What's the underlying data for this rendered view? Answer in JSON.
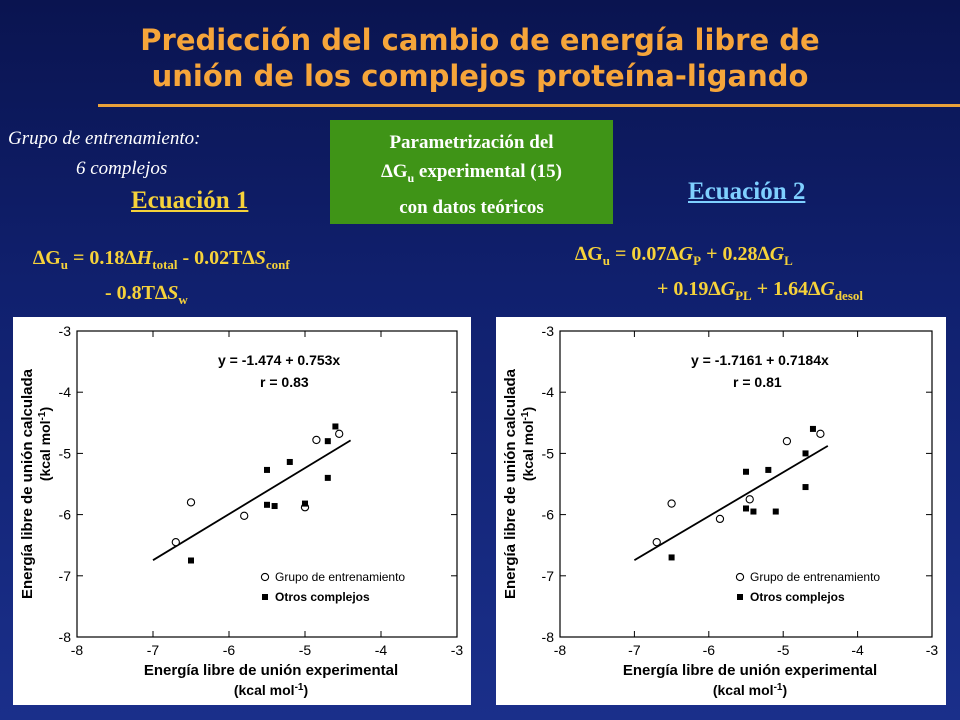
{
  "slide": {
    "title_line1": "Predicción del cambio de energía libre de",
    "title_line2": "unión de los complejos proteína-ligando",
    "training_line1": "Grupo de entrenamiento:",
    "training_line2": "6 complejos",
    "box_line1": "Parametrización del",
    "box_delta": "∆G",
    "box_sub": "u",
    "box_line2_rest": " experimental (15)",
    "box_line3": "con datos teóricos",
    "eq1_title": "Ecuación 1",
    "eq2_title": "Ecuación 2",
    "colors": {
      "title": "#f6a53a",
      "eq_text": "#f6d23a",
      "eq2_title": "#7fd0ff",
      "box": "#3f9417"
    }
  },
  "formula1": {
    "p1": "∆G",
    "p1_sub": "u",
    "p2": " = 0.18∆",
    "p3": "H",
    "p3_sub": "total",
    "p4": " - 0.02T∆",
    "p5": "S",
    "p5_sub": "conf",
    "p6": "- 0.8T∆",
    "p7": "S",
    "p7_sub": "w"
  },
  "formula2": {
    "p1": "∆G",
    "p1_sub": "u",
    "p2": " = 0.07∆",
    "p3": "G",
    "p3_sub": "P",
    "p4": " + 0.28∆",
    "p5": "G",
    "p5_sub": "L",
    "p6": "+ 0.19∆",
    "p7": "G",
    "p7_sub": "PL",
    "p8": " + 1.64∆",
    "p9": "G",
    "p9_sub": "desol"
  },
  "chart_data": [
    {
      "type": "scatter",
      "xlabel": "Energía libre de unión experimental",
      "xlabel_units": "(kcal mol",
      "xlabel_sup": "-1",
      "xlabel_close": ")",
      "ylabel": "Energía libre de unión calculada",
      "ylabel_units": "(kcal mol",
      "ylabel_sup": "-1",
      "ylabel_close": ")",
      "xlim": [
        -8,
        -3
      ],
      "ylim": [
        -8,
        -3
      ],
      "xticks": [
        -8,
        -7,
        -6,
        -5,
        -4,
        -3
      ],
      "yticks": [
        -3,
        -4,
        -5,
        -6,
        -7,
        -8
      ],
      "eq_text": "y = -1.474 + 0.753x",
      "r_text": "r = 0.83",
      "legend_position": "bottom-right",
      "fit": {
        "intercept": -1.474,
        "slope": 0.753,
        "x_range": [
          -7.0,
          -4.4
        ]
      },
      "series": [
        {
          "name": "Grupo de entrenamiento",
          "marker": "open-circle",
          "x": [
            -6.7,
            -6.5,
            -5.8,
            -5.0,
            -4.85,
            -4.55
          ],
          "y": [
            -6.45,
            -5.8,
            -6.02,
            -5.88,
            -4.78,
            -4.68
          ]
        },
        {
          "name": "Otros complejos",
          "marker": "filled-square",
          "x": [
            -6.5,
            -5.5,
            -5.5,
            -5.4,
            -5.2,
            -5.0,
            -4.7,
            -4.7,
            -4.6
          ],
          "y": [
            -6.75,
            -5.27,
            -5.84,
            -5.86,
            -5.14,
            -5.82,
            -4.8,
            -5.4,
            -4.56
          ]
        }
      ]
    },
    {
      "type": "scatter",
      "xlabel": "Energía libre de unión experimental",
      "xlabel_units": "(kcal mol",
      "xlabel_sup": "-1",
      "xlabel_close": ")",
      "ylabel": "Energía libre de unión calculada",
      "ylabel_units": "(kcal mol",
      "ylabel_sup": "-1",
      "ylabel_close": ")",
      "xlim": [
        -8,
        -3
      ],
      "ylim": [
        -8,
        -3
      ],
      "xticks": [
        -8,
        -7,
        -6,
        -5,
        -4,
        -3
      ],
      "yticks": [
        -3,
        -4,
        -5,
        -6,
        -7,
        -8
      ],
      "eq_text": "y = -1.7161 + 0.7184x",
      "r_text": "r = 0.81",
      "legend_position": "bottom-right",
      "fit": {
        "intercept": -1.7161,
        "slope": 0.7184,
        "x_range": [
          -7.0,
          -4.4
        ]
      },
      "series": [
        {
          "name": "Grupo de entrenamiento",
          "marker": "open-circle",
          "x": [
            -6.7,
            -6.5,
            -5.85,
            -5.45,
            -4.95,
            -4.5
          ],
          "y": [
            -6.45,
            -5.82,
            -6.07,
            -5.75,
            -4.8,
            -4.68
          ]
        },
        {
          "name": "Otros complejos",
          "marker": "filled-square",
          "x": [
            -6.5,
            -5.5,
            -5.5,
            -5.4,
            -5.2,
            -5.1,
            -4.7,
            -4.7,
            -4.6
          ],
          "y": [
            -6.7,
            -5.3,
            -5.9,
            -5.95,
            -5.27,
            -5.95,
            -5.0,
            -5.55,
            -4.6
          ]
        }
      ]
    }
  ]
}
